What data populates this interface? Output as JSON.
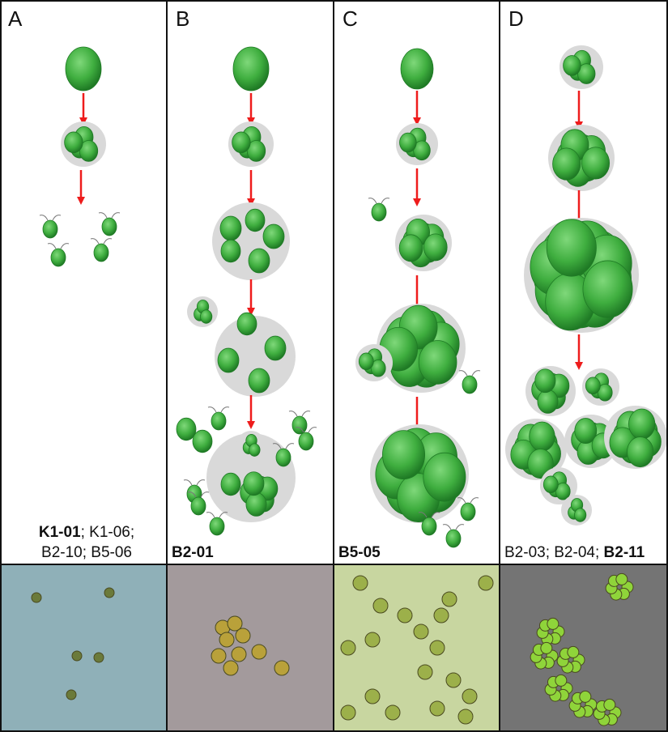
{
  "panels": [
    {
      "letter": "A",
      "strains": [
        {
          "text": "K1-01",
          "bold": true
        },
        {
          "text": "; K1-06;",
          "bold": false
        },
        {
          "text": "B2-10; B5-06",
          "bold": false,
          "newline": true
        }
      ],
      "photo_bg": "#8fb0b8"
    },
    {
      "letter": "B",
      "strains": [
        {
          "text": "B2-01",
          "bold": true
        }
      ],
      "photo_bg": "#a39a9c"
    },
    {
      "letter": "C",
      "strains": [
        {
          "text": "B5-05",
          "bold": true
        }
      ],
      "photo_bg": "#c8d6a0"
    },
    {
      "letter": "D",
      "strains": [
        {
          "text": "B2-03; B2-04; ",
          "bold": false
        },
        {
          "text": "B2-11",
          "bold": true
        }
      ],
      "photo_bg": "#747474"
    }
  ],
  "colors": {
    "cell": "#3fae3f",
    "cell_dark": "#1f7a25",
    "arrow": "#ee1c1c",
    "matrix": "#d9d9d9"
  }
}
